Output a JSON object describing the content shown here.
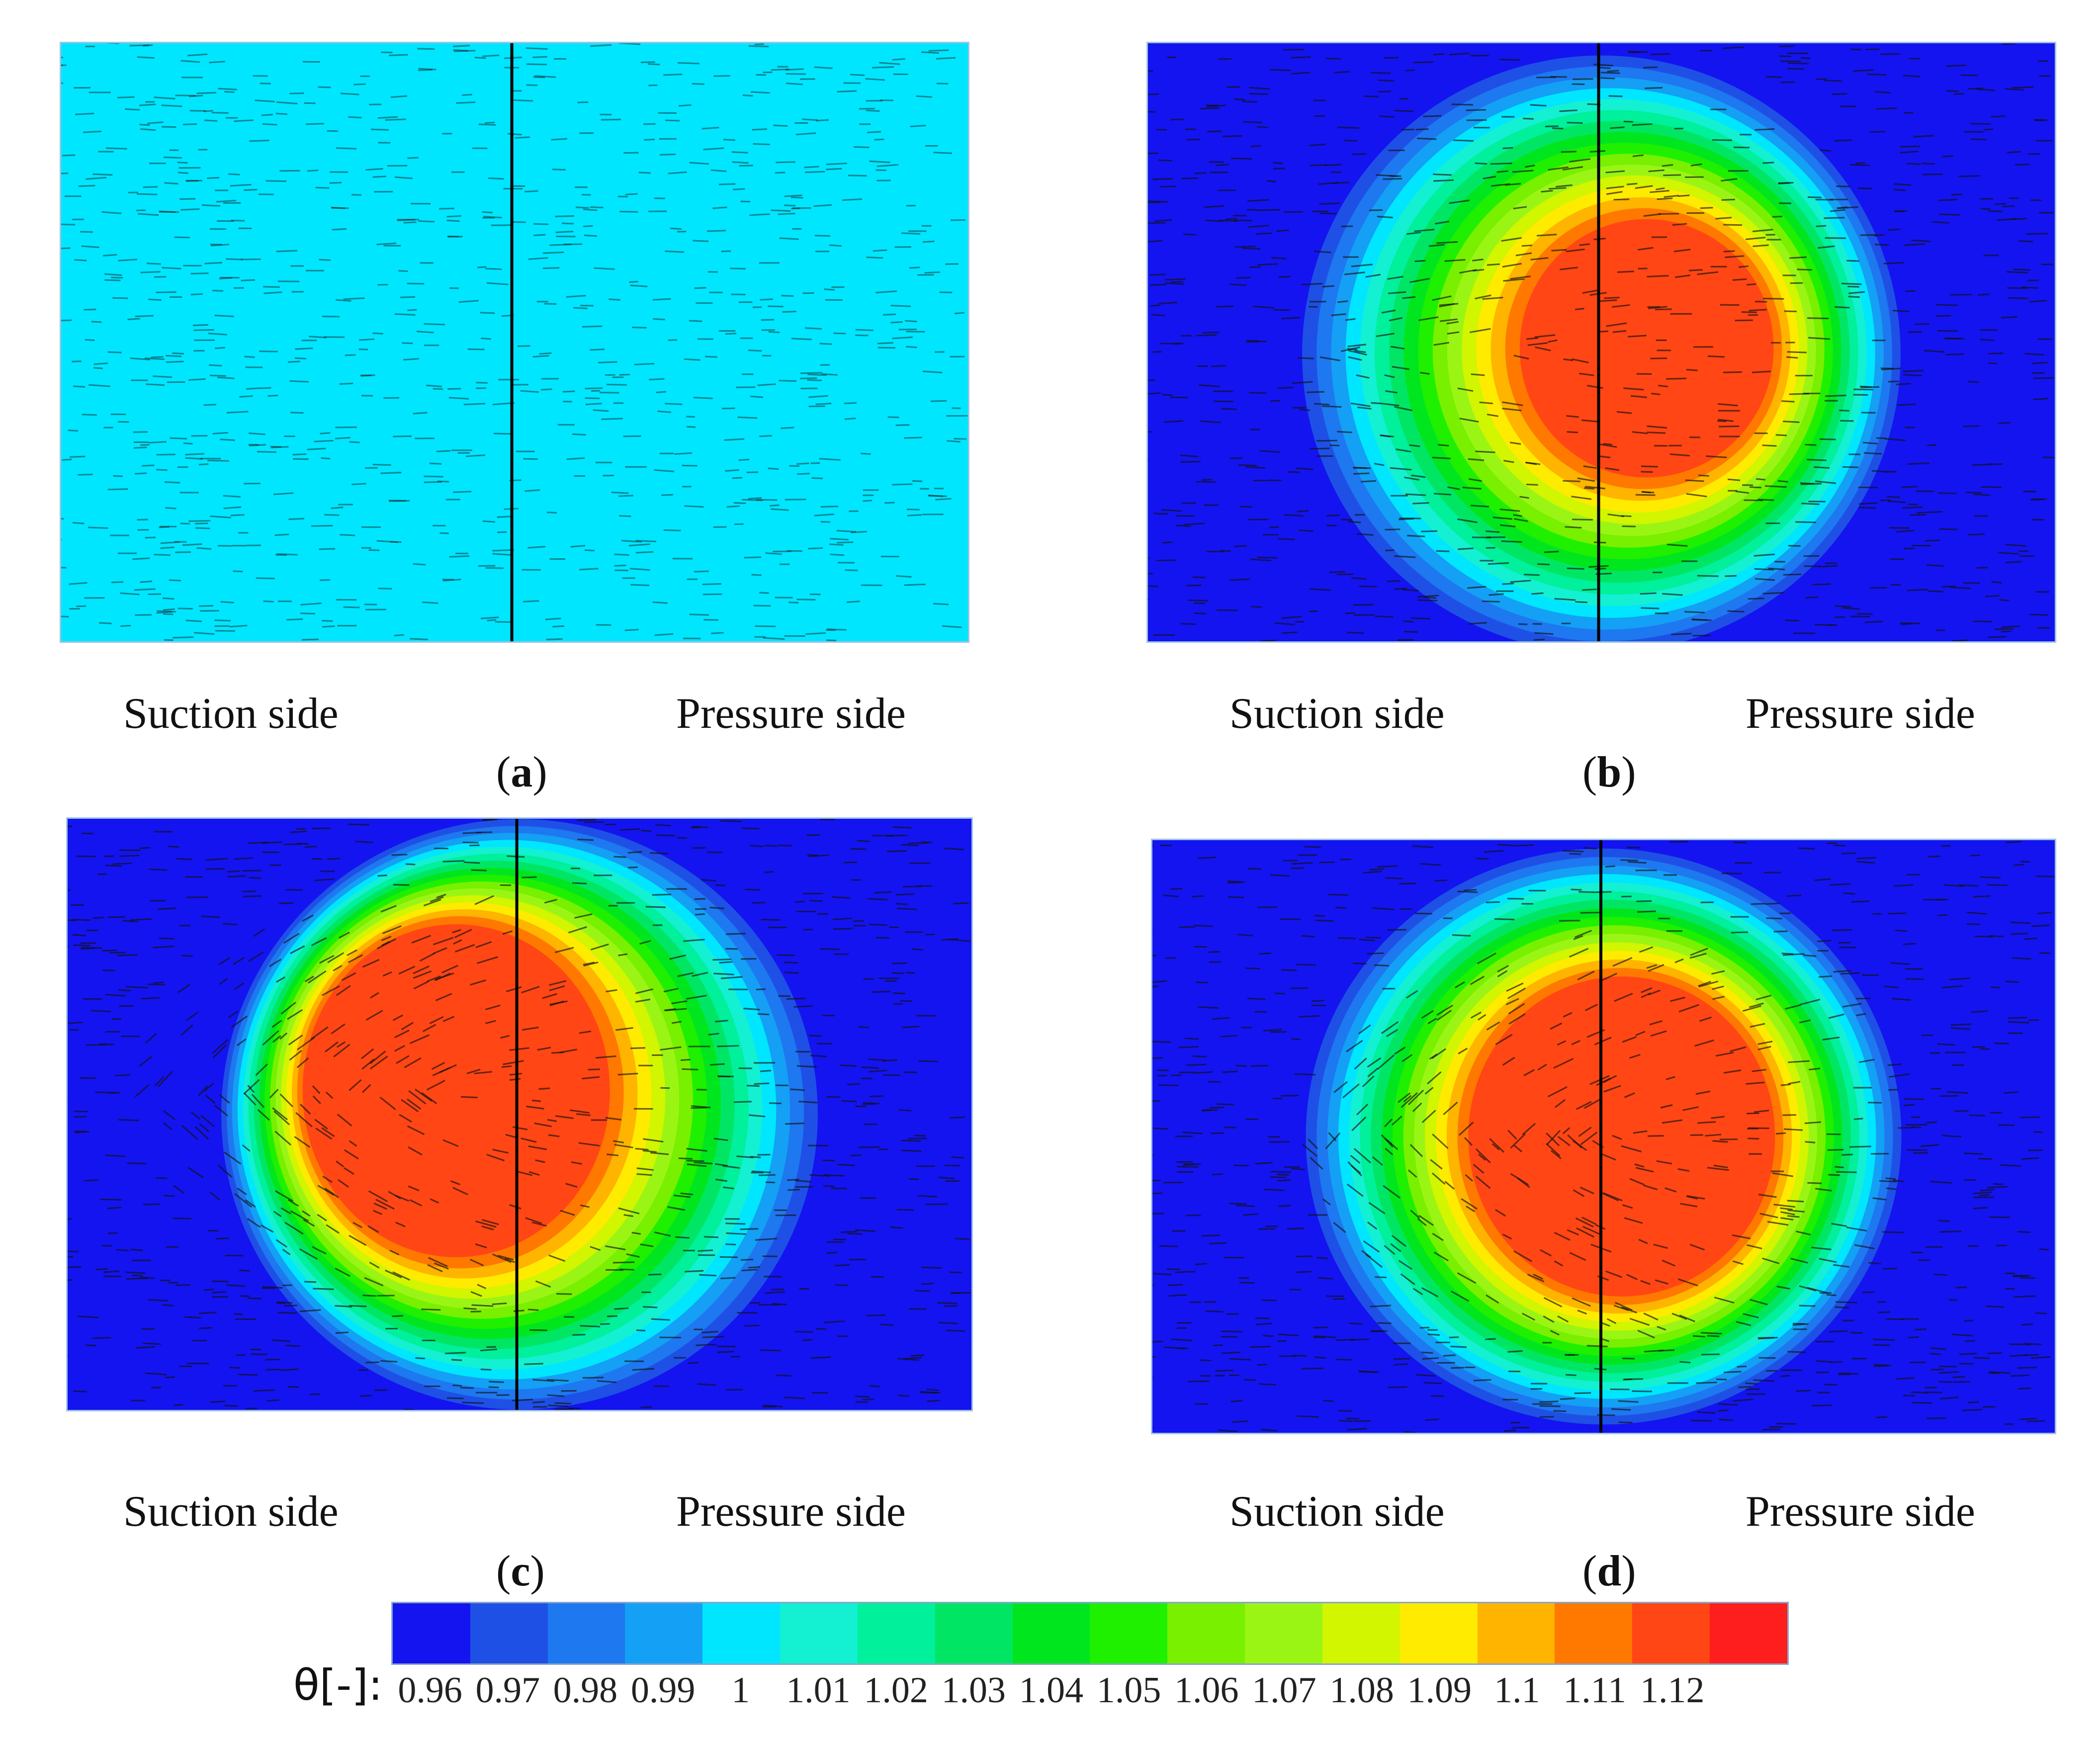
{
  "figure": {
    "panels": [
      {
        "id": "a",
        "letter": "a",
        "suction": "Suction side",
        "pressure": "Pressure side",
        "field": "uniform"
      },
      {
        "id": "b",
        "letter": "b",
        "suction": "Suction side",
        "pressure": "Pressure side",
        "field": "hotspot"
      },
      {
        "id": "c",
        "letter": "c",
        "suction": "Suction side",
        "pressure": "Pressure side",
        "field": "hotspot"
      },
      {
        "id": "d",
        "letter": "d",
        "suction": "Suction side",
        "pressure": "Pressure side",
        "field": "hotspot"
      }
    ]
  },
  "chart_data": {
    "type": "heatmap",
    "title": "",
    "variable_label": "θ[-]:",
    "colorbar": {
      "ticks": [
        "0.96",
        "0.97",
        "0.98",
        "0.99",
        "1",
        "1.01",
        "1.02",
        "1.03",
        "1.04",
        "1.05",
        "1.06",
        "1.07",
        "1.08",
        "1.09",
        "1.1",
        "1.11",
        "1.12"
      ],
      "range": [
        0.96,
        1.12
      ],
      "colors": [
        "#1414f0",
        "#1e50e6",
        "#1e78f0",
        "#14a0f5",
        "#00e6ff",
        "#14f0d2",
        "#00f09b",
        "#00e664",
        "#00e61e",
        "#1ef000",
        "#78f000",
        "#9bf514",
        "#d2f500",
        "#ffeb00",
        "#ffb400",
        "#ff7800",
        "#ff4614",
        "#ff1e1e"
      ]
    },
    "fields": [
      {
        "panel": "a",
        "description": "uniform",
        "value": 1.0
      },
      {
        "panel": "b",
        "peak": 1.11,
        "background": 0.96
      },
      {
        "panel": "c",
        "peak": 1.11,
        "background": 0.96
      },
      {
        "panel": "d",
        "peak": 1.11,
        "background": 0.96
      }
    ]
  }
}
